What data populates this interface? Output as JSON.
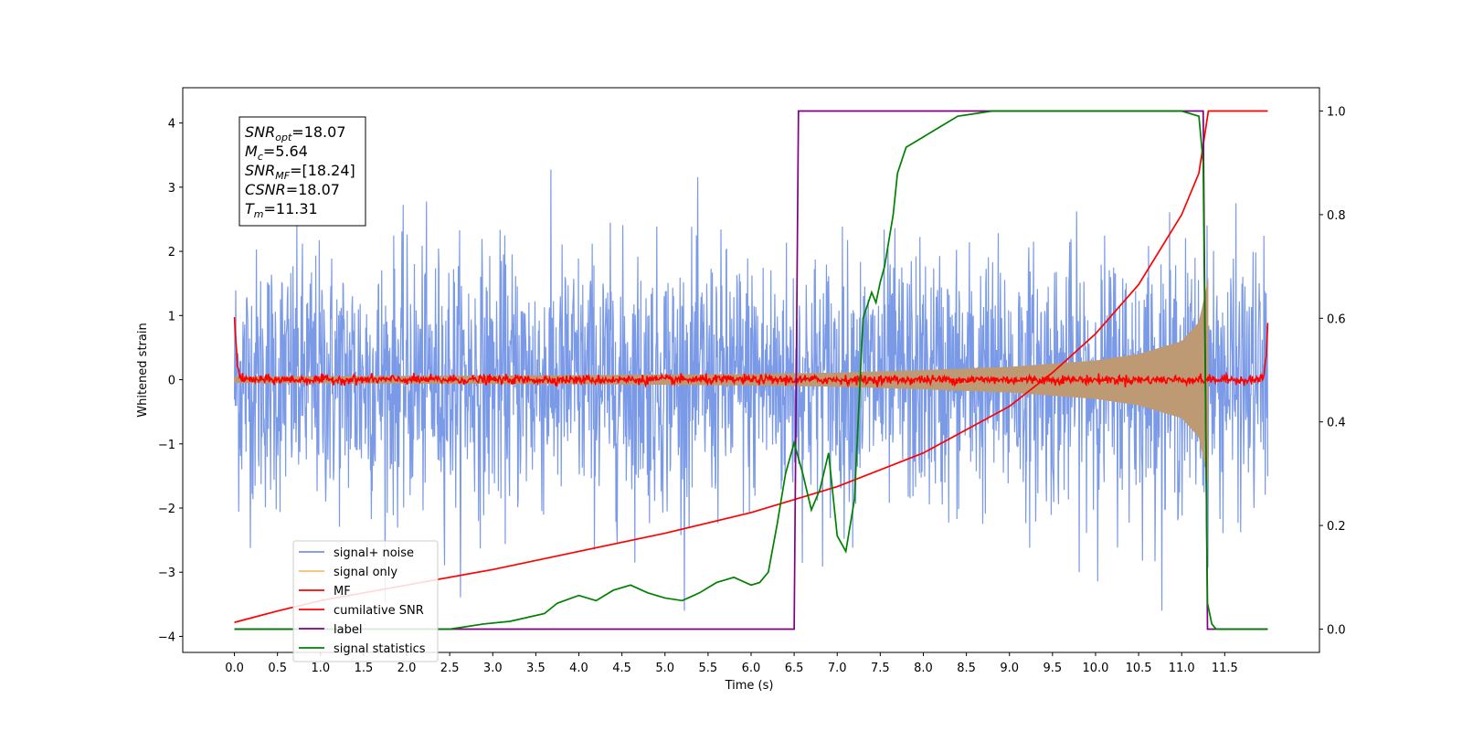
{
  "chart_data": {
    "type": "line",
    "title": "",
    "xlabel": "Time (s)",
    "ylabel": "Whitened strain",
    "xlim": [
      -0.6,
      12.6
    ],
    "ylim": [
      -4.25,
      4.55
    ],
    "y2lim": [
      -0.045,
      1.045
    ],
    "x_ticks": [
      0.0,
      0.5,
      1.0,
      1.5,
      2.0,
      2.5,
      3.0,
      3.5,
      4.0,
      4.5,
      5.0,
      5.5,
      6.0,
      6.5,
      7.0,
      7.5,
      8.0,
      8.5,
      9.0,
      9.5,
      10.0,
      10.5,
      11.0,
      11.5
    ],
    "x_tick_labels": [
      "0.0",
      "0.5",
      "1.0",
      "1.5",
      "2.0",
      "2.5",
      "3.0",
      "3.5",
      "4.0",
      "4.5",
      "5.0",
      "5.5",
      "6.0",
      "6.5",
      "7.0",
      "7.5",
      "8.0",
      "8.5",
      "9.0",
      "9.5",
      "10.0",
      "10.5",
      "11.0",
      "11.5"
    ],
    "y_ticks": [
      -4,
      -3,
      -2,
      -1,
      0,
      1,
      2,
      3,
      4
    ],
    "y_tick_labels": [
      "−4",
      "−3",
      "−2",
      "−1",
      "0",
      "1",
      "2",
      "3",
      "4"
    ],
    "y2_ticks": [
      0.0,
      0.2,
      0.4,
      0.6,
      0.8,
      1.0
    ],
    "y2_tick_labels": [
      "0.0",
      "0.2",
      "0.4",
      "0.6",
      "0.8",
      "1.0"
    ],
    "grid": false,
    "legend_position": "lower-left",
    "annotation": {
      "lines": [
        {
          "base": "SNR",
          "sub": "opt",
          "rest": "=18.07"
        },
        {
          "base": "M",
          "sub": "c",
          "rest": "=5.64"
        },
        {
          "base": "SNR",
          "sub": "MF",
          "rest": "=[18.24]"
        },
        {
          "base": "CSNR",
          "sub": "",
          "rest": "=18.07"
        },
        {
          "base": "T",
          "sub": "m",
          "rest": "=11.31"
        }
      ]
    },
    "series": [
      {
        "name": "signal+ noise",
        "color": "#7393e6",
        "axis": "left",
        "kind": "noise",
        "sigma": 1.0,
        "x_range": [
          0.0,
          12.0
        ]
      },
      {
        "name": "signal only",
        "color": "#f5c26b",
        "axis": "left",
        "kind": "chirp_envelope",
        "x": [
          0.0,
          2.0,
          4.0,
          6.0,
          7.0,
          8.0,
          9.0,
          10.0,
          10.5,
          11.0,
          11.2,
          11.28,
          11.31
        ],
        "amplitude": [
          0.05,
          0.06,
          0.07,
          0.09,
          0.11,
          0.15,
          0.2,
          0.3,
          0.4,
          0.6,
          0.9,
          1.4,
          1.6
        ]
      },
      {
        "name": "MF",
        "color": "#ff0000",
        "axis": "left",
        "kind": "matched_filter",
        "x": [
          0.0,
          0.03,
          0.06,
          0.1,
          11.9,
          11.95,
          11.98,
          12.0
        ],
        "y": [
          1.0,
          0.3,
          0.05,
          0.0,
          0.0,
          0.05,
          0.3,
          0.9
        ]
      },
      {
        "name": "cumilative SNR",
        "color": "#ff0000",
        "axis": "right",
        "x": [
          0.0,
          0.5,
          1.0,
          2.0,
          3.0,
          4.0,
          5.0,
          6.0,
          7.0,
          8.0,
          9.0,
          9.5,
          10.0,
          10.5,
          11.0,
          11.2,
          11.31,
          11.5,
          12.0
        ],
        "y": [
          0.013,
          0.035,
          0.055,
          0.085,
          0.115,
          0.15,
          0.185,
          0.225,
          0.275,
          0.34,
          0.43,
          0.495,
          0.57,
          0.665,
          0.8,
          0.88,
          1.0,
          1.0,
          1.0
        ]
      },
      {
        "name": "label",
        "color": "#800080",
        "axis": "right",
        "x": [
          0.0,
          6.5,
          6.55,
          11.25,
          11.3,
          12.0
        ],
        "y": [
          0.0,
          0.0,
          1.0,
          1.0,
          0.0,
          0.0
        ]
      },
      {
        "name": "signal statistics",
        "color": "#008000",
        "axis": "right",
        "x": [
          0.0,
          2.5,
          2.9,
          3.2,
          3.6,
          3.75,
          4.0,
          4.2,
          4.4,
          4.6,
          4.8,
          5.0,
          5.2,
          5.4,
          5.6,
          5.8,
          6.0,
          6.1,
          6.2,
          6.3,
          6.4,
          6.5,
          6.6,
          6.7,
          6.8,
          6.9,
          6.95,
          7.0,
          7.1,
          7.2,
          7.3,
          7.4,
          7.45,
          7.5,
          7.55,
          7.6,
          7.65,
          7.7,
          7.8,
          8.0,
          8.2,
          8.4,
          8.6,
          8.8,
          9.0,
          9.5,
          10.0,
          11.0,
          11.2,
          11.25,
          11.3,
          11.35,
          11.4,
          11.5,
          12.0
        ],
        "y": [
          0.0,
          0.0,
          0.01,
          0.015,
          0.03,
          0.05,
          0.065,
          0.055,
          0.075,
          0.085,
          0.07,
          0.06,
          0.055,
          0.07,
          0.09,
          0.1,
          0.085,
          0.09,
          0.11,
          0.2,
          0.3,
          0.36,
          0.3,
          0.23,
          0.27,
          0.34,
          0.26,
          0.18,
          0.15,
          0.25,
          0.6,
          0.65,
          0.63,
          0.67,
          0.7,
          0.75,
          0.8,
          0.88,
          0.93,
          0.95,
          0.97,
          0.99,
          0.995,
          1.0,
          1.0,
          1.0,
          1.0,
          1.0,
          0.99,
          0.9,
          0.05,
          0.01,
          0.0,
          0.0,
          0.0
        ]
      }
    ]
  }
}
